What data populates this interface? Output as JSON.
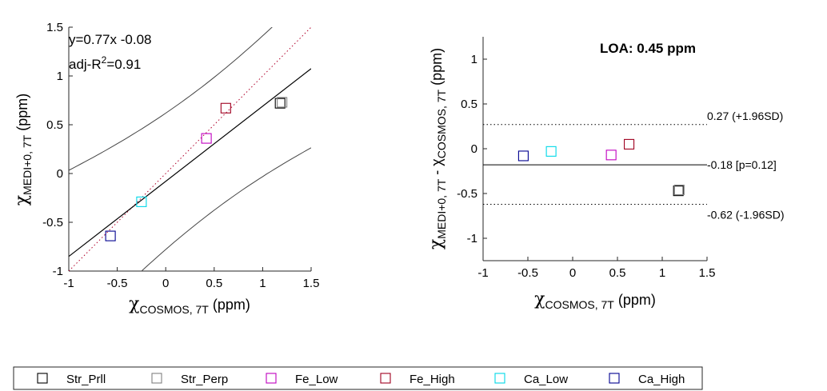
{
  "chart_data": [
    {
      "type": "scatter",
      "title": "",
      "xlabel": {
        "symbol": "χ",
        "sub": "COSMOS, 7T",
        "unit": "(ppm)"
      },
      "ylabel": {
        "symbol": "χ",
        "sub": "MEDI+0, 7T",
        "unit": "(ppm)"
      },
      "xlim": [
        -1,
        1.5
      ],
      "ylim": [
        -1,
        1.5
      ],
      "xticks": [
        -1,
        -0.5,
        0,
        0.5,
        1,
        1.5
      ],
      "yticks": [
        -1,
        -0.5,
        0,
        0.5,
        1,
        1.5
      ],
      "xtick_labels": [
        "-1",
        "-0.5",
        "0",
        "0.5",
        "1",
        "1.5"
      ],
      "ytick_labels": [
        "-1",
        "-0.5",
        "0",
        "0.5",
        "1",
        "1.5"
      ],
      "grid": false,
      "annotations": {
        "equation": "y=0.77x -0.08",
        "r2_prefix": "adj-R",
        "r2_sup": "2",
        "r2_value": "=0.91"
      },
      "fit": {
        "slope": 0.77,
        "intercept": -0.08
      },
      "confidence_band_halfwidth": 0.68,
      "identity_line": true,
      "points": [
        {
          "series": "Str_Prll",
          "x": 1.18,
          "y": 0.72
        },
        {
          "series": "Str_Perp",
          "x": 1.2,
          "y": 0.73
        },
        {
          "series": "Fe_Low",
          "x": 0.42,
          "y": 0.36
        },
        {
          "series": "Fe_High",
          "x": 0.62,
          "y": 0.67
        },
        {
          "series": "Ca_Low",
          "x": -0.25,
          "y": -0.29
        },
        {
          "series": "Ca_High",
          "x": -0.57,
          "y": -0.64
        }
      ]
    },
    {
      "type": "scatter",
      "title": "LOA: 0.45 ppm",
      "xlabel": {
        "symbol": "χ",
        "sub": "COSMOS, 7T",
        "unit": "(ppm)"
      },
      "ylabel": {
        "symbol": "χ",
        "sub": "MEDI+0, 7T",
        "mid": "- χ",
        "sub2": "COSMOS, 7T",
        "unit": "(ppm)"
      },
      "xlim": [
        -1,
        1.5
      ],
      "ylim": [
        -1.25,
        1.25
      ],
      "xticks": [
        -1,
        -0.5,
        0,
        0.5,
        1,
        1.5
      ],
      "yticks": [
        -1,
        -0.5,
        0,
        0.5,
        1
      ],
      "xtick_labels": [
        "-1",
        "-0.5",
        "0",
        "0.5",
        "1",
        "1.5"
      ],
      "ytick_labels": [
        "-1",
        "-0.5",
        "0",
        "0.5",
        "1"
      ],
      "grid": false,
      "reference_lines": [
        {
          "y": 0.27,
          "style": "dotted",
          "label": "0.27 (+1.96SD)"
        },
        {
          "y": -0.18,
          "style": "solid",
          "label": "-0.18 [p=0.12]"
        },
        {
          "y": -0.62,
          "style": "dotted",
          "label": "-0.62 (-1.96SD)"
        }
      ],
      "points": [
        {
          "series": "Str_Prll",
          "x": 1.18,
          "y": -0.47
        },
        {
          "series": "Str_Perp",
          "x": 1.19,
          "y": -0.46
        },
        {
          "series": "Fe_Low",
          "x": 0.43,
          "y": -0.07
        },
        {
          "series": "Fe_High",
          "x": 0.63,
          "y": 0.05
        },
        {
          "series": "Ca_Low",
          "x": -0.24,
          "y": -0.03
        },
        {
          "series": "Ca_High",
          "x": -0.55,
          "y": -0.08
        }
      ]
    }
  ],
  "legend": {
    "placement": "bottom",
    "entries": [
      {
        "name": "Str_Prll",
        "color": "#000000"
      },
      {
        "name": "Str_Perp",
        "color": "#808080"
      },
      {
        "name": "Fe_Low",
        "color": "#c000c0"
      },
      {
        "name": "Fe_High",
        "color": "#a00020"
      },
      {
        "name": "Ca_Low",
        "color": "#00d8e8"
      },
      {
        "name": "Ca_High",
        "color": "#000090"
      }
    ]
  }
}
